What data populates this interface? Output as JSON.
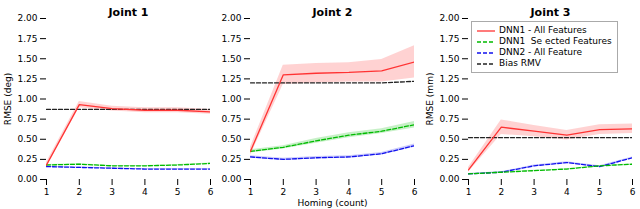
{
  "chart_data": [
    {
      "type": "line",
      "title": "Joint 1",
      "ylabel": "RMSE (deg)",
      "x": [
        1,
        2,
        3,
        4,
        5,
        6
      ],
      "xlim": [
        1,
        6
      ],
      "xticks": [
        1,
        2,
        3,
        4,
        5,
        6
      ],
      "ylim": [
        0.0,
        2.0
      ],
      "yticks": [
        {
          "value": 0.0,
          "label": "0.00"
        },
        0.25,
        {
          "value": 0.5,
          "label": "0.50"
        },
        0.75,
        {
          "value": 1.0,
          "label": "1.00"
        },
        1.25,
        {
          "value": 1.5,
          "label": "1.50"
        },
        1.75,
        {
          "value": 2.0,
          "label": "2.00"
        }
      ],
      "series": [
        {
          "name": "DNN1 - All Features",
          "color": "#FF3333",
          "line_style": "solid",
          "values": [
            0.18,
            0.93,
            0.88,
            0.86,
            0.86,
            0.84
          ],
          "std": [
            0.03,
            0.04,
            0.03,
            0.03,
            0.03,
            0.03
          ]
        },
        {
          "name": "DNN1  Se ected Features",
          "color": "#00BB00",
          "line_style": "dashed",
          "values": [
            0.18,
            0.19,
            0.17,
            0.17,
            0.18,
            0.2
          ],
          "std": [
            0.005,
            0.005,
            0.005,
            0.005,
            0.005,
            0.005
          ]
        },
        {
          "name": "DNN2 - All Feature",
          "color": "#1111EE",
          "line_style": "dashed",
          "values": [
            0.16,
            0.15,
            0.14,
            0.13,
            0.13,
            0.13
          ],
          "std": [
            0.005,
            0.005,
            0.005,
            0.005,
            0.005,
            0.005
          ]
        },
        {
          "name": "Bias RMV",
          "color": "#222222",
          "line_style": "dashed",
          "values": [
            0.87,
            0.87,
            0.87,
            0.87,
            0.87,
            0.87
          ]
        }
      ]
    },
    {
      "type": "line",
      "title": "Joint 2",
      "xlabel": "Homing (count)",
      "x": [
        1,
        2,
        3,
        4,
        5,
        6
      ],
      "xlim": [
        1,
        6
      ],
      "xticks": [
        1,
        2,
        3,
        4,
        5,
        6
      ],
      "ylim": [
        0.0,
        2.0
      ],
      "yticks": [
        {
          "value": 0.0,
          "label": "0.00"
        },
        0.25,
        {
          "value": 0.5,
          "label": "0.50"
        },
        0.75,
        {
          "value": 1.0,
          "label": "1.00"
        },
        1.25,
        {
          "value": 1.5,
          "label": "1.50"
        },
        1.75,
        {
          "value": 2.0,
          "label": "2.00"
        }
      ],
      "series": [
        {
          "name": "DNN1 - All Features",
          "color": "#FF3333",
          "line_style": "solid",
          "values": [
            0.35,
            1.3,
            1.32,
            1.33,
            1.35,
            1.46
          ],
          "std": [
            0.05,
            0.12,
            0.12,
            0.12,
            0.14,
            0.2
          ]
        },
        {
          "name": "DNN1  Se ected Features",
          "color": "#00BB00",
          "line_style": "dashed",
          "values": [
            0.35,
            0.4,
            0.48,
            0.55,
            0.6,
            0.68
          ],
          "std": [
            0.02,
            0.02,
            0.03,
            0.03,
            0.03,
            0.04
          ]
        },
        {
          "name": "DNN2 - All Feature",
          "color": "#1111EE",
          "line_style": "dashed",
          "values": [
            0.28,
            0.25,
            0.27,
            0.28,
            0.32,
            0.42
          ],
          "std": [
            0.015,
            0.015,
            0.015,
            0.015,
            0.015,
            0.02
          ]
        },
        {
          "name": "Bias RMV",
          "color": "#222222",
          "line_style": "dashed",
          "values": [
            1.2,
            1.2,
            1.2,
            1.2,
            1.2,
            1.22
          ]
        }
      ]
    },
    {
      "type": "line",
      "title": "Joint 3",
      "ylabel": "RMSE (mm)",
      "legend": "upper left",
      "x": [
        1,
        2,
        3,
        4,
        5,
        6
      ],
      "xlim": [
        1,
        6
      ],
      "xticks": [
        1,
        2,
        3,
        4,
        5,
        6
      ],
      "ylim": [
        0.0,
        2.0
      ],
      "yticks": [
        {
          "value": 0.0,
          "label": "0.00"
        },
        0.25,
        {
          "value": 0.5,
          "label": "0.50"
        },
        0.75,
        {
          "value": 1.0,
          "label": "1.00"
        },
        1.25,
        {
          "value": 1.5,
          "label": "1.50"
        },
        1.75,
        {
          "value": 2.0,
          "label": "2.00"
        }
      ],
      "series": [
        {
          "name": "DNN1 - All Features",
          "color": "#FF3333",
          "line_style": "solid",
          "values": [
            0.12,
            0.65,
            0.6,
            0.55,
            0.62,
            0.63
          ],
          "std": [
            0.03,
            0.09,
            0.07,
            0.06,
            0.06,
            0.06
          ]
        },
        {
          "name": "DNN1  Se ected Features",
          "color": "#00BB00",
          "line_style": "dashed",
          "values": [
            0.07,
            0.09,
            0.11,
            0.13,
            0.17,
            0.19
          ],
          "std": [
            0.005,
            0.005,
            0.005,
            0.005,
            0.005,
            0.005
          ]
        },
        {
          "name": "DNN2 - All Feature",
          "color": "#1111EE",
          "line_style": "dashed",
          "values": [
            0.07,
            0.09,
            0.17,
            0.21,
            0.16,
            0.27
          ],
          "std": [
            0.005,
            0.005,
            0.01,
            0.01,
            0.01,
            0.01
          ]
        },
        {
          "name": "Bias RMV",
          "color": "#222222",
          "line_style": "dashed",
          "values": [
            0.52,
            0.52,
            0.52,
            0.52,
            0.52,
            0.52
          ]
        }
      ]
    }
  ]
}
